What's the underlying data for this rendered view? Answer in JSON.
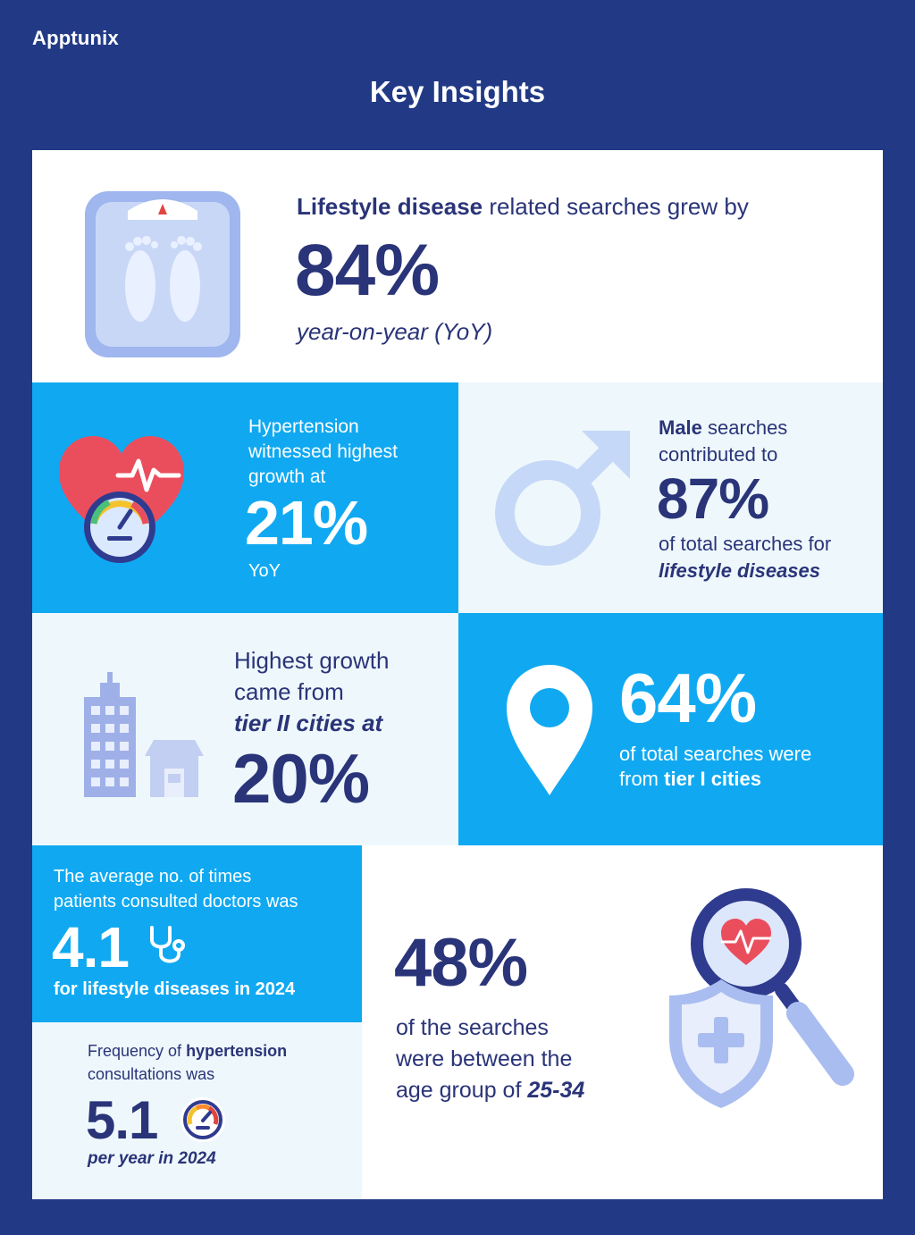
{
  "brand": "Apptunix",
  "page_title": "Key Insights",
  "lifestyle": {
    "lead_bold": "Lifestyle disease",
    "lead_rest": " related searches grew by",
    "value": "84%",
    "sub": "year-on-year (YoY)"
  },
  "hypertension": {
    "line1": "Hypertension",
    "line2": "witnessed highest",
    "line3": "growth at",
    "value": "21%",
    "sub": "YoY"
  },
  "male": {
    "lead_bold": "Male",
    "lead_rest": " searches",
    "line2": "contributed to",
    "value": "87%",
    "line3": "of total searches for",
    "line4": "lifestyle diseases"
  },
  "tier2": {
    "line1": "Highest growth",
    "line2": "came from",
    "line3": "tier II cities at",
    "value": "20%"
  },
  "tier1": {
    "value": "64%",
    "line1": "of total searches were",
    "line2_prefix": "from ",
    "line2_bold": "tier I cities"
  },
  "consult": {
    "line1": "The average no. of times",
    "line2": "patients consulted doctors was",
    "value": "4.1",
    "line3": "for lifestyle diseases in 2024"
  },
  "frequency": {
    "line1_prefix": "Frequency of ",
    "line1_bold": "hypertension",
    "line2": "consultations was",
    "value": "5.1",
    "line3": "per year in 2024"
  },
  "age": {
    "value": "48%",
    "line1": "of the searches",
    "line2": "were between the",
    "line3_prefix": "age group of ",
    "line3_bold": "25-34"
  },
  "colors": {
    "background": "#223a86",
    "navy_text": "#2a3478",
    "bright_blue": "#10a9f1",
    "light_panel": "#eef8fc",
    "icon_light_blue": "#a9bdf0"
  },
  "icons": [
    "weighing-scale-icon",
    "heart-gauge-icon",
    "male-symbol-icon",
    "city-buildings-icon",
    "location-pin-icon",
    "stethoscope-icon",
    "gauge-icon",
    "magnifier-heart-icon",
    "shield-cross-icon"
  ]
}
